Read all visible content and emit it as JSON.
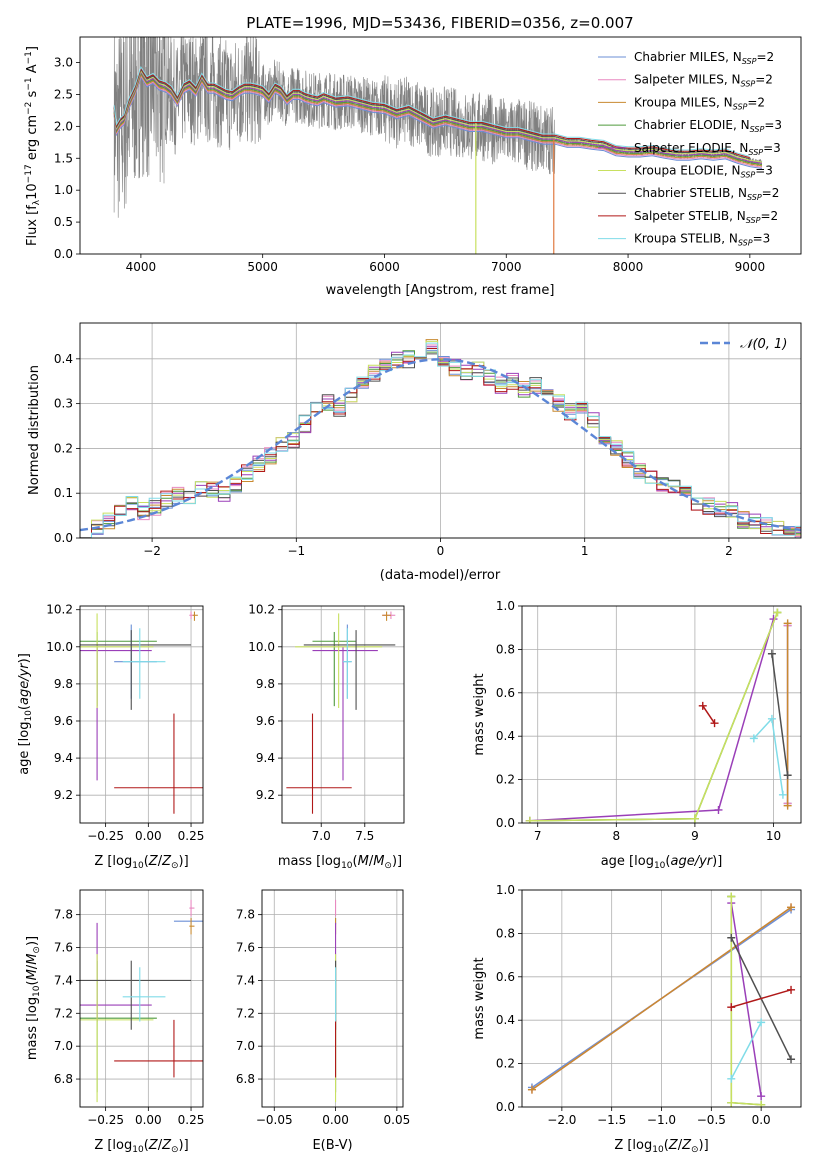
{
  "chart_data": [
    {
      "id": "spectrum",
      "type": "line",
      "title": "PLATE=1996, MJD=53436, FIBERID=0356, z=0.007",
      "xlabel": "wavelength [Angstrom, rest frame]",
      "ylabel": "Flux [f_λ10^-17 erg cm^-2 s^-1 A^-1]",
      "xlim": [
        3500,
        9420
      ],
      "ylim": [
        0,
        3.4
      ],
      "xticks": [
        4000,
        5000,
        6000,
        7000,
        8000,
        9000
      ],
      "yticks": [
        0.0,
        0.5,
        1.0,
        1.5,
        2.0,
        2.5,
        3.0
      ],
      "legend_position": "upper right",
      "legend": [
        {
          "name": "Chabrier MILES, N_SSP=2",
          "color": "#6b8fd6"
        },
        {
          "name": "Salpeter MILES, N_SSP=2",
          "color": "#e888c0"
        },
        {
          "name": "Kroupa MILES, N_SSP=2",
          "color": "#c88a30"
        },
        {
          "name": "Chabrier ELODIE, N_SSP=3",
          "color": "#4f9a3c"
        },
        {
          "name": "Salpeter ELODIE, N_SSP=3",
          "color": "#9a3fb8"
        },
        {
          "name": "Kroupa ELODIE, N_SSP=3",
          "color": "#c8e060"
        },
        {
          "name": "Chabrier STELIB, N_SSP=2",
          "color": "#505050"
        },
        {
          "name": "Salpeter STELIB, N_SSP=2",
          "color": "#b01818"
        },
        {
          "name": "Kroupa STELIB, N_SSP=3",
          "color": "#80dce8"
        }
      ],
      "data_color": "#808080",
      "model_curve": {
        "x": [
          3780,
          3800,
          3830,
          3860,
          3900,
          3950,
          4000,
          4050,
          4100,
          4150,
          4200,
          4250,
          4300,
          4350,
          4400,
          4450,
          4500,
          4550,
          4600,
          4650,
          4700,
          4750,
          4800,
          4850,
          4900,
          4950,
          5000,
          5050,
          5100,
          5150,
          5200,
          5250,
          5300,
          5350,
          5400,
          5450,
          5500,
          5600,
          5700,
          5800,
          5900,
          6000,
          6100,
          6200,
          6300,
          6400,
          6500,
          6600,
          6700,
          6800,
          6900,
          7000,
          7100,
          7200,
          7300,
          7400,
          7500,
          7600,
          7700,
          7800,
          7900,
          8000,
          8100,
          8200,
          8300,
          8400,
          8500,
          8600,
          8700,
          8800,
          8900,
          9000,
          9100
        ],
        "y": [
          2.25,
          1.95,
          2.05,
          2.1,
          2.35,
          2.55,
          2.85,
          2.7,
          2.75,
          2.65,
          2.62,
          2.55,
          2.4,
          2.6,
          2.65,
          2.55,
          2.75,
          2.6,
          2.6,
          2.55,
          2.5,
          2.48,
          2.55,
          2.6,
          2.6,
          2.58,
          2.55,
          2.45,
          2.6,
          2.55,
          2.42,
          2.5,
          2.5,
          2.45,
          2.42,
          2.4,
          2.45,
          2.38,
          2.4,
          2.35,
          2.3,
          2.28,
          2.2,
          2.25,
          2.15,
          2.05,
          2.1,
          2.05,
          2.0,
          2.0,
          1.95,
          1.9,
          1.9,
          1.85,
          1.8,
          1.8,
          1.75,
          1.75,
          1.72,
          1.7,
          1.62,
          1.6,
          1.6,
          1.62,
          1.58,
          1.55,
          1.55,
          1.57,
          1.55,
          1.57,
          1.5,
          1.45,
          1.42
        ]
      }
    },
    {
      "id": "residuals",
      "type": "step",
      "xlabel": "(data-model)/error",
      "ylabel": "Normed distribution",
      "xlim": [
        -2.5,
        2.5
      ],
      "ylim": [
        0,
        0.48
      ],
      "xticks": [
        -2,
        -1,
        0,
        1,
        2
      ],
      "yticks": [
        0.0,
        0.1,
        0.2,
        0.3,
        0.4
      ],
      "legend_position": "upper right",
      "gaussian_label": "𝒩(0, 1)",
      "gaussian_color": "#5b86d6",
      "bin_width": 0.1,
      "bin_start": -2.5,
      "base_values": [
        0.02,
        0.025,
        0.04,
        0.065,
        0.075,
        0.06,
        0.07,
        0.085,
        0.095,
        0.085,
        0.11,
        0.11,
        0.095,
        0.12,
        0.145,
        0.165,
        0.185,
        0.205,
        0.22,
        0.255,
        0.285,
        0.3,
        0.29,
        0.32,
        0.345,
        0.37,
        0.385,
        0.395,
        0.4,
        0.39,
        0.43,
        0.4,
        0.38,
        0.37,
        0.38,
        0.36,
        0.34,
        0.35,
        0.33,
        0.34,
        0.325,
        0.3,
        0.28,
        0.285,
        0.26,
        0.22,
        0.2,
        0.175,
        0.15,
        0.135,
        0.12,
        0.115,
        0.1,
        0.075,
        0.07,
        0.065,
        0.065,
        0.04,
        0.035,
        0.03,
        0.025,
        0.02,
        0.02
      ]
    },
    {
      "id": "age-vs-Z",
      "type": "errorbar",
      "xlabel": "Z [log10(Z/Z⊙)]",
      "ylabel": "age [log10(age/yr)]",
      "xlim": [
        -0.4,
        0.32
      ],
      "ylim": [
        9.05,
        10.22
      ],
      "xticks": [
        -0.25,
        0.0,
        0.25
      ],
      "yticks": [
        9.2,
        9.4,
        9.6,
        9.8,
        10.0,
        10.2
      ],
      "points": [
        {
          "x": -0.1,
          "y": 9.92,
          "color": "#6b8fd6"
        },
        {
          "x": 0.25,
          "y": 10.17,
          "color": "#e888c0"
        },
        {
          "x": 0.27,
          "y": 10.17,
          "color": "#c88a30"
        },
        {
          "x": -0.3,
          "y": 10.03,
          "color": "#4f9a3c"
        },
        {
          "x": -0.3,
          "y": 9.98,
          "color": "#9a3fb8"
        },
        {
          "x": -0.3,
          "y": 10.0,
          "color": "#c8e060"
        },
        {
          "x": -0.1,
          "y": 10.01,
          "color": "#505050"
        },
        {
          "x": 0.15,
          "y": 9.24,
          "color": "#b01818"
        },
        {
          "x": -0.05,
          "y": 9.92,
          "color": "#80dce8"
        }
      ]
    },
    {
      "id": "age-vs-mass",
      "type": "errorbar",
      "xlabel": "mass [log10(M/M⊙)]",
      "ylabel": "",
      "xlim": [
        6.55,
        7.95
      ],
      "ylim": [
        9.05,
        10.22
      ],
      "xticks": [
        7.0,
        7.5
      ],
      "yticks": [
        9.2,
        9.4,
        9.6,
        9.8,
        10.0,
        10.2
      ],
      "points": [
        {
          "x": 7.3,
          "y": 9.92,
          "color": "#6b8fd6"
        },
        {
          "x": 7.8,
          "y": 10.17,
          "color": "#e888c0"
        },
        {
          "x": 7.75,
          "y": 10.17,
          "color": "#c88a30"
        },
        {
          "x": 7.15,
          "y": 10.03,
          "color": "#4f9a3c"
        },
        {
          "x": 7.25,
          "y": 9.98,
          "color": "#9a3fb8"
        },
        {
          "x": 7.2,
          "y": 10.0,
          "color": "#c8e060"
        },
        {
          "x": 7.4,
          "y": 10.01,
          "color": "#505050"
        },
        {
          "x": 6.9,
          "y": 9.24,
          "color": "#b01818"
        },
        {
          "x": 7.3,
          "y": 9.92,
          "color": "#80dce8"
        }
      ]
    },
    {
      "id": "weight-vs-age",
      "type": "line",
      "xlabel": "age [log10(age/yr)]",
      "ylabel": "mass weight",
      "xlim": [
        6.8,
        10.35
      ],
      "ylim": [
        0.0,
        1.0
      ],
      "xticks": [
        7,
        8,
        9,
        10
      ],
      "yticks": [
        0.0,
        0.2,
        0.4,
        0.6,
        0.8,
        1.0
      ],
      "series": [
        {
          "color": "#6b8fd6",
          "x": [
            10.18,
            10.18
          ],
          "y": [
            0.09,
            0.91
          ]
        },
        {
          "color": "#e888c0",
          "x": [
            10.18,
            10.18
          ],
          "y": [
            0.09,
            0.91
          ]
        },
        {
          "color": "#c88a30",
          "x": [
            10.18,
            10.18
          ],
          "y": [
            0.08,
            0.92
          ]
        },
        {
          "color": "#4f9a3c",
          "x": [
            6.9,
            9.0,
            10.05
          ],
          "y": [
            0.01,
            0.02,
            0.97
          ]
        },
        {
          "color": "#9a3fb8",
          "x": [
            6.9,
            9.3,
            10.0
          ],
          "y": [
            0.01,
            0.06,
            0.94
          ]
        },
        {
          "color": "#c8e060",
          "x": [
            6.9,
            9.0,
            10.05
          ],
          "y": [
            0.01,
            0.02,
            0.97
          ]
        },
        {
          "color": "#505050",
          "x": [
            9.98,
            10.18
          ],
          "y": [
            0.78,
            0.22
          ]
        },
        {
          "color": "#b01818",
          "x": [
            9.1,
            9.25
          ],
          "y": [
            0.54,
            0.46
          ]
        },
        {
          "color": "#80dce8",
          "x": [
            9.75,
            9.98,
            10.12
          ],
          "y": [
            0.39,
            0.48,
            0.13
          ]
        }
      ]
    },
    {
      "id": "mass-vs-Z",
      "type": "errorbar",
      "xlabel": "Z [log10(Z/Z⊙)]",
      "ylabel": "mass [log10(M/M⊙)]",
      "xlim": [
        -0.4,
        0.32
      ],
      "ylim": [
        6.63,
        7.95
      ],
      "xticks": [
        -0.25,
        0.0,
        0.25
      ],
      "yticks": [
        6.8,
        7.0,
        7.2,
        7.4,
        7.6,
        7.8
      ],
      "points": [
        {
          "x": 0.25,
          "y": 7.76,
          "color": "#6b8fd6"
        },
        {
          "x": 0.25,
          "y": 7.84,
          "color": "#e888c0"
        },
        {
          "x": 0.25,
          "y": 7.73,
          "color": "#c88a30"
        },
        {
          "x": -0.3,
          "y": 7.17,
          "color": "#4f9a3c"
        },
        {
          "x": -0.3,
          "y": 7.25,
          "color": "#9a3fb8"
        },
        {
          "x": -0.3,
          "y": 7.16,
          "color": "#c8e060"
        },
        {
          "x": -0.1,
          "y": 7.4,
          "color": "#505050"
        },
        {
          "x": 0.15,
          "y": 6.91,
          "color": "#b01818"
        },
        {
          "x": -0.05,
          "y": 7.3,
          "color": "#80dce8"
        }
      ]
    },
    {
      "id": "mass-vs-ebv",
      "type": "errorbar",
      "xlabel": "E(B-V)",
      "ylabel": "",
      "xlim": [
        -0.06,
        0.055
      ],
      "ylim": [
        6.63,
        7.95
      ],
      "xticks": [
        -0.05,
        0.0,
        0.05
      ],
      "yticks": [
        6.8,
        7.0,
        7.2,
        7.4,
        7.6,
        7.8
      ],
      "points": [
        {
          "x": 0.0,
          "y": 7.76,
          "color": "#6b8fd6"
        },
        {
          "x": 0.0,
          "y": 7.84,
          "color": "#e888c0"
        },
        {
          "x": 0.0,
          "y": 7.73,
          "color": "#c88a30"
        },
        {
          "x": 0.0,
          "y": 7.17,
          "color": "#4f9a3c"
        },
        {
          "x": 0.0,
          "y": 7.25,
          "color": "#9a3fb8"
        },
        {
          "x": 0.0,
          "y": 7.16,
          "color": "#c8e060"
        },
        {
          "x": 0.0,
          "y": 7.4,
          "color": "#505050"
        },
        {
          "x": 0.0,
          "y": 6.91,
          "color": "#b01818"
        },
        {
          "x": 0.0,
          "y": 7.3,
          "color": "#80dce8"
        }
      ]
    },
    {
      "id": "weight-vs-Z",
      "type": "line",
      "xlabel": "Z [log10(Z/Z⊙)]",
      "ylabel": "mass weight",
      "xlim": [
        -2.4,
        0.4
      ],
      "ylim": [
        0.0,
        1.0
      ],
      "xticks": [
        -2.0,
        -1.5,
        -1.0,
        -0.5,
        0.0
      ],
      "yticks": [
        0.0,
        0.2,
        0.4,
        0.6,
        0.8,
        1.0
      ],
      "series": [
        {
          "color": "#6b8fd6",
          "x": [
            -2.3,
            0.3
          ],
          "y": [
            0.09,
            0.91
          ]
        },
        {
          "color": "#e888c0",
          "x": [
            -2.3,
            0.3
          ],
          "y": [
            0.08,
            0.92
          ]
        },
        {
          "color": "#c88a30",
          "x": [
            -2.3,
            0.3
          ],
          "y": [
            0.08,
            0.92
          ]
        },
        {
          "color": "#4f9a3c",
          "x": [
            -0.3,
            -0.3,
            0.0
          ],
          "y": [
            0.97,
            0.02,
            0.01
          ]
        },
        {
          "color": "#9a3fb8",
          "x": [
            -0.3,
            0.0
          ],
          "y": [
            0.94,
            0.05
          ]
        },
        {
          "color": "#c8e060",
          "x": [
            -0.3,
            -0.3,
            0.0
          ],
          "y": [
            0.97,
            0.02,
            0.01
          ]
        },
        {
          "color": "#505050",
          "x": [
            -0.3,
            0.3
          ],
          "y": [
            0.78,
            0.22
          ]
        },
        {
          "color": "#b01818",
          "x": [
            -0.3,
            0.3
          ],
          "y": [
            0.46,
            0.54
          ]
        },
        {
          "color": "#80dce8",
          "x": [
            -0.3,
            0.0
          ],
          "y": [
            0.13,
            0.39
          ]
        }
      ]
    }
  ]
}
